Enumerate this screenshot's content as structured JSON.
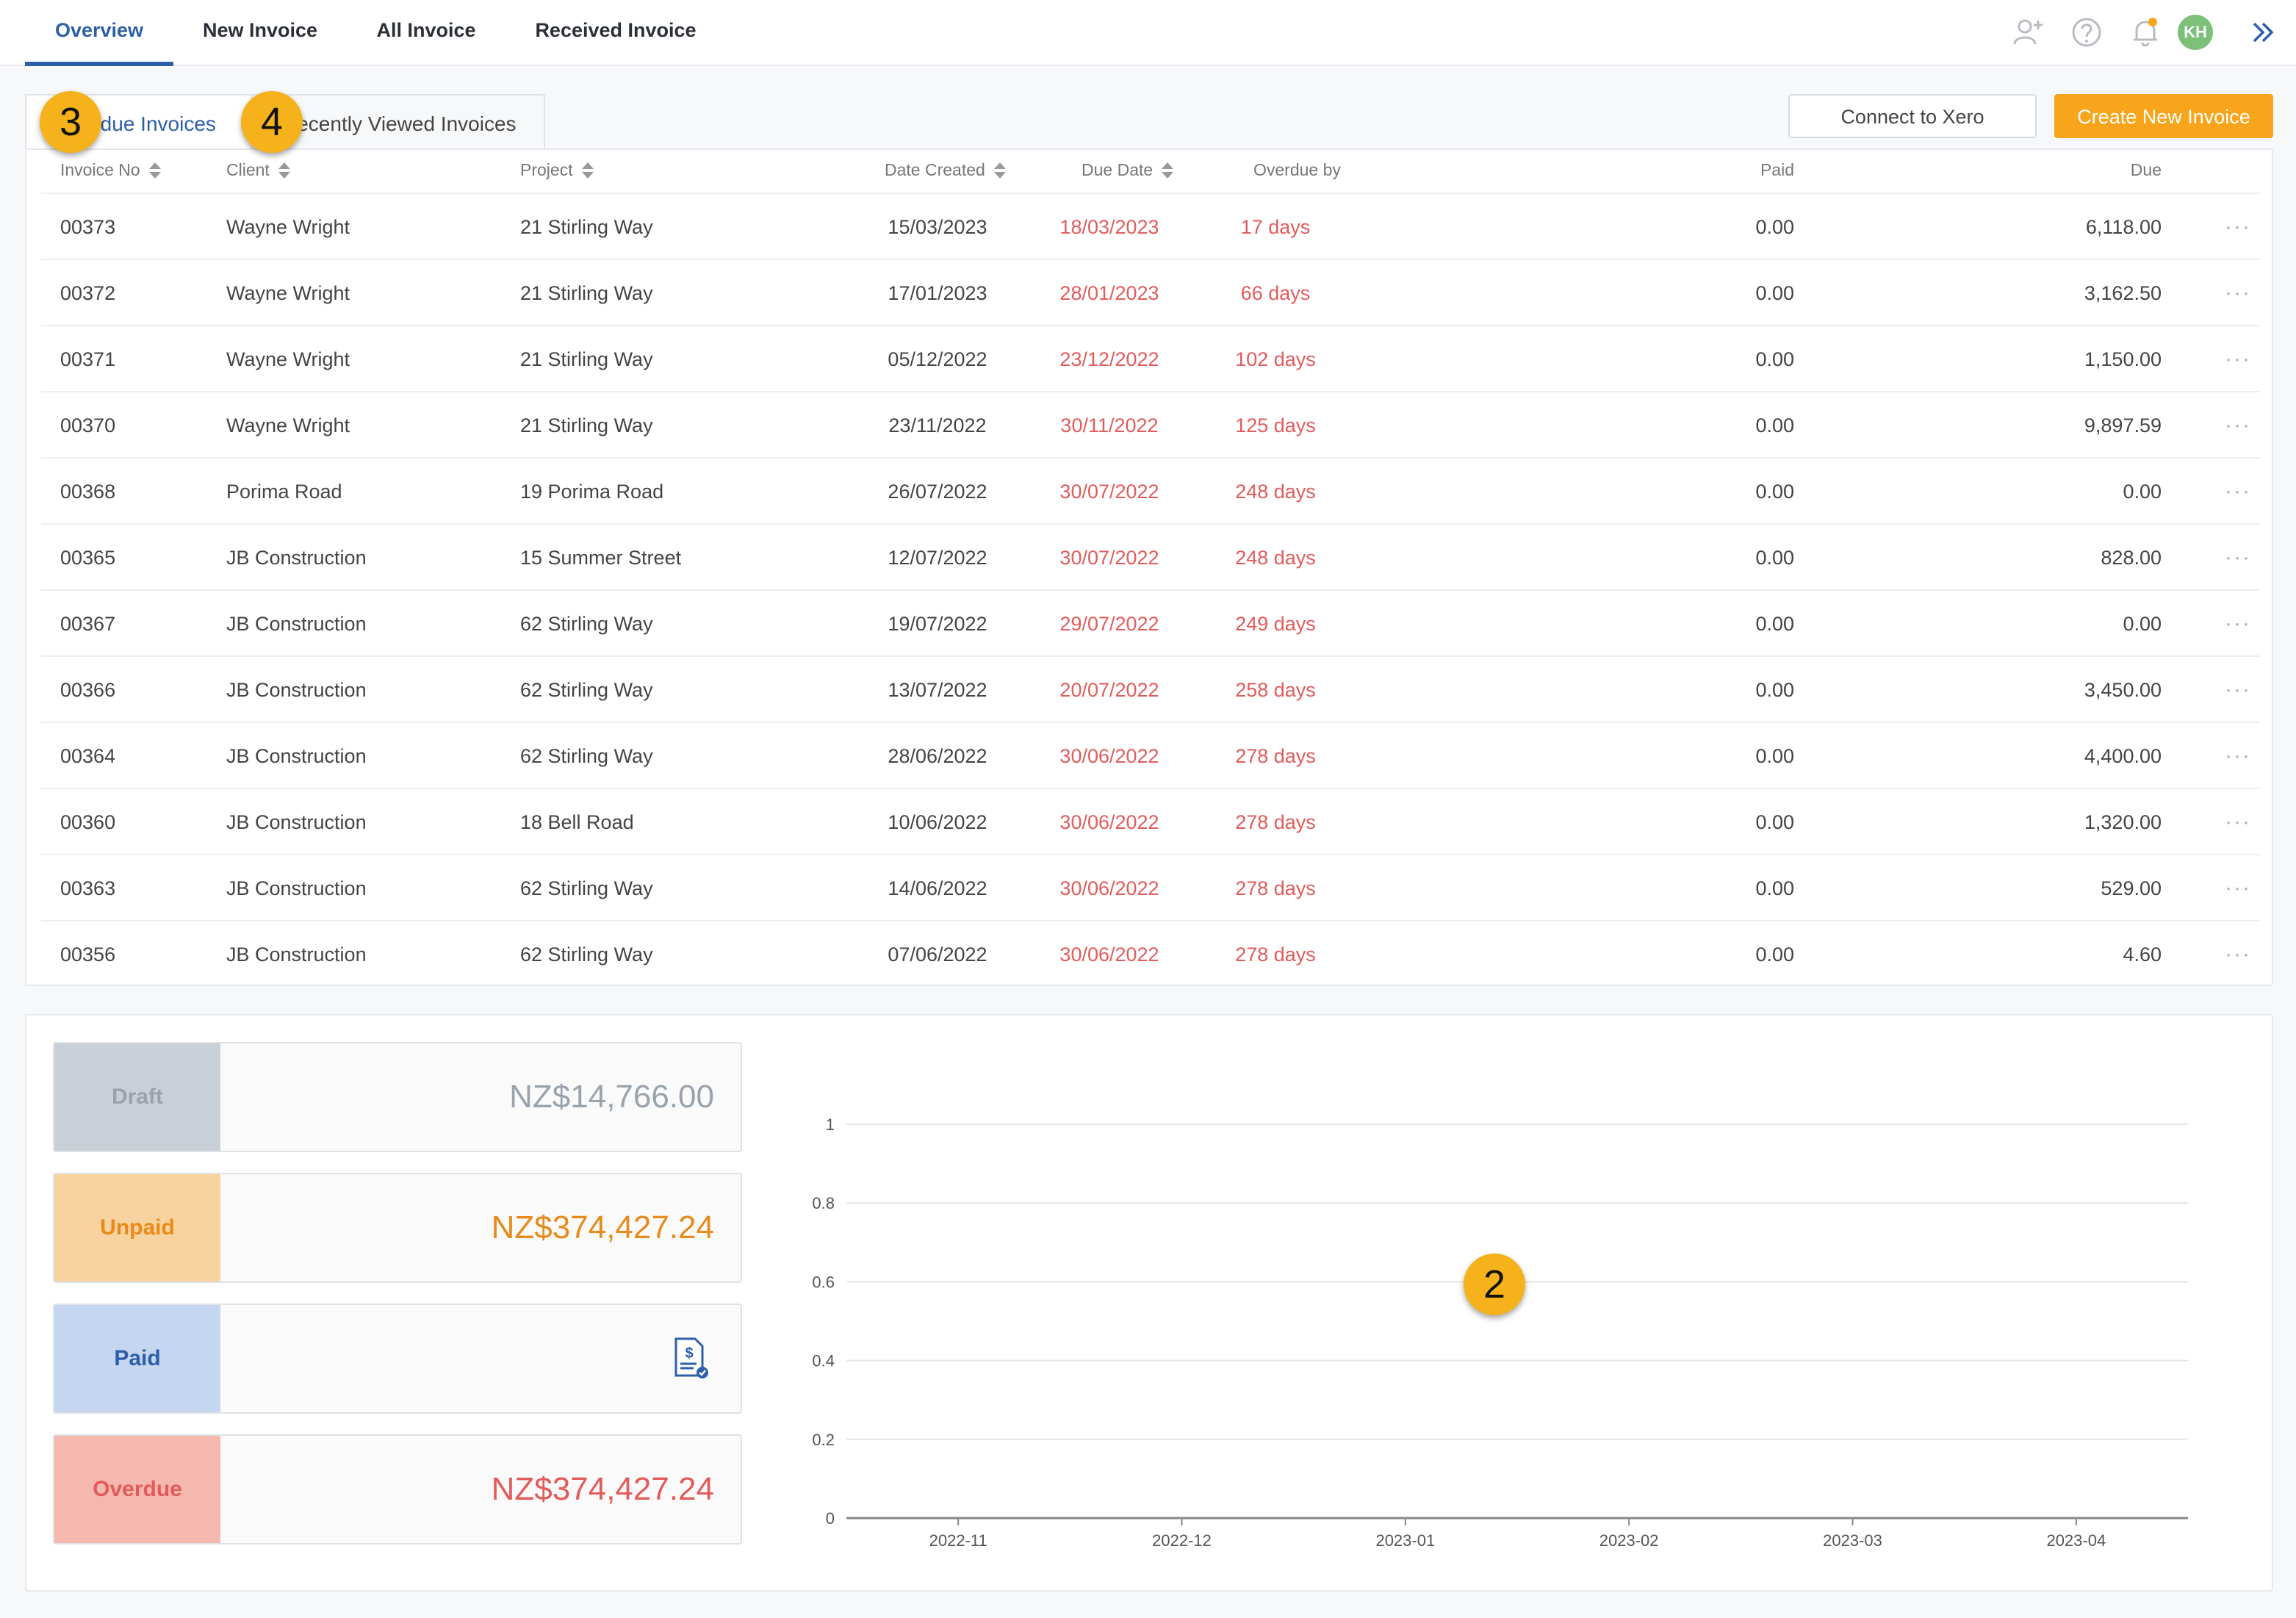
{
  "nav": {
    "tabs": [
      {
        "label": "Overview",
        "active": true
      },
      {
        "label": "New Invoice",
        "active": false
      },
      {
        "label": "All Invoice",
        "active": false
      },
      {
        "label": "Received Invoice",
        "active": false
      }
    ],
    "icons": [
      "add-user-icon",
      "help-icon",
      "bell-icon",
      "avatar",
      "double-chevron-right-icon"
    ],
    "avatar_initials": "KH",
    "notification_color": "#f9a51b"
  },
  "invoices": {
    "subtabs": [
      {
        "label": "Overdue Invoices",
        "active": true
      },
      {
        "label": "Recently Viewed Invoices",
        "active": false
      }
    ],
    "connect_label": "Connect to Xero",
    "create_label": "Create New Invoice",
    "columns": [
      "Invoice No",
      "Client",
      "Project",
      "Date Created",
      "Due Date",
      "Overdue by",
      "Paid",
      "Due"
    ],
    "rows": [
      [
        "00373",
        "Wayne Wright",
        "21 Stirling Way",
        "15/03/2023",
        "18/03/2023",
        "17 days",
        "0.00",
        "6,118.00"
      ],
      [
        "00372",
        "Wayne Wright",
        "21 Stirling Way",
        "17/01/2023",
        "28/01/2023",
        "66 days",
        "0.00",
        "3,162.50"
      ],
      [
        "00371",
        "Wayne Wright",
        "21 Stirling Way",
        "05/12/2022",
        "23/12/2022",
        "102 days",
        "0.00",
        "1,150.00"
      ],
      [
        "00370",
        "Wayne Wright",
        "21 Stirling Way",
        "23/11/2022",
        "30/11/2022",
        "125 days",
        "0.00",
        "9,897.59"
      ],
      [
        "00368",
        "Porima Road",
        "19 Porima Road",
        "26/07/2022",
        "30/07/2022",
        "248 days",
        "0.00",
        "0.00"
      ],
      [
        "00365",
        "JB Construction",
        "15 Summer Street",
        "12/07/2022",
        "30/07/2022",
        "248 days",
        "0.00",
        "828.00"
      ],
      [
        "00367",
        "JB Construction",
        "62 Stirling Way",
        "19/07/2022",
        "29/07/2022",
        "249 days",
        "0.00",
        "0.00"
      ],
      [
        "00366",
        "JB Construction",
        "62 Stirling Way",
        "13/07/2022",
        "20/07/2022",
        "258 days",
        "0.00",
        "3,450.00"
      ],
      [
        "00364",
        "JB Construction",
        "62 Stirling Way",
        "28/06/2022",
        "30/06/2022",
        "278 days",
        "0.00",
        "4,400.00"
      ],
      [
        "00360",
        "JB Construction",
        "18 Bell Road",
        "10/06/2022",
        "30/06/2022",
        "278 days",
        "0.00",
        "1,320.00"
      ],
      [
        "00363",
        "JB Construction",
        "62 Stirling Way",
        "14/06/2022",
        "30/06/2022",
        "278 days",
        "0.00",
        "529.00"
      ],
      [
        "00356",
        "JB Construction",
        "62 Stirling Way",
        "07/06/2022",
        "30/06/2022",
        "278 days",
        "0.00",
        "4.60"
      ]
    ],
    "row_menu_label": "···"
  },
  "summary": {
    "cards": [
      {
        "label": "Draft",
        "value": "NZ$14,766.00",
        "label_bg": "#c9cfd6",
        "label_color": "#9aa3ad",
        "value_color": "#9aa3ad"
      },
      {
        "label": "Unpaid",
        "value": "NZ$374,427.24",
        "label_bg": "#f8d39f",
        "label_color": "#e98a1a",
        "value_color": "#e98a1a"
      },
      {
        "label": "Paid",
        "value": "",
        "label_bg": "#c5d6f0",
        "label_color": "#2c5fa8",
        "value_color": "#2c5fa8",
        "icon": "invoice-check-icon"
      },
      {
        "label": "Overdue",
        "value": "NZ$374,427.24",
        "label_bg": "#f5b8ae",
        "label_color": "#e35b5b",
        "value_color": "#e35b5b"
      }
    ]
  },
  "chart_data": {
    "type": "bar",
    "categories": [
      "2022-11",
      "2022-12",
      "2023-01",
      "2023-02",
      "2023-03",
      "2023-04"
    ],
    "series": [],
    "yticks": [
      "0",
      "0.2",
      "0.4",
      "0.6",
      "0.8",
      "1"
    ],
    "ylim": [
      0,
      1
    ],
    "grid": true,
    "title": "",
    "xlabel": "",
    "ylabel": ""
  },
  "callouts": [
    "2",
    "3",
    "4"
  ]
}
